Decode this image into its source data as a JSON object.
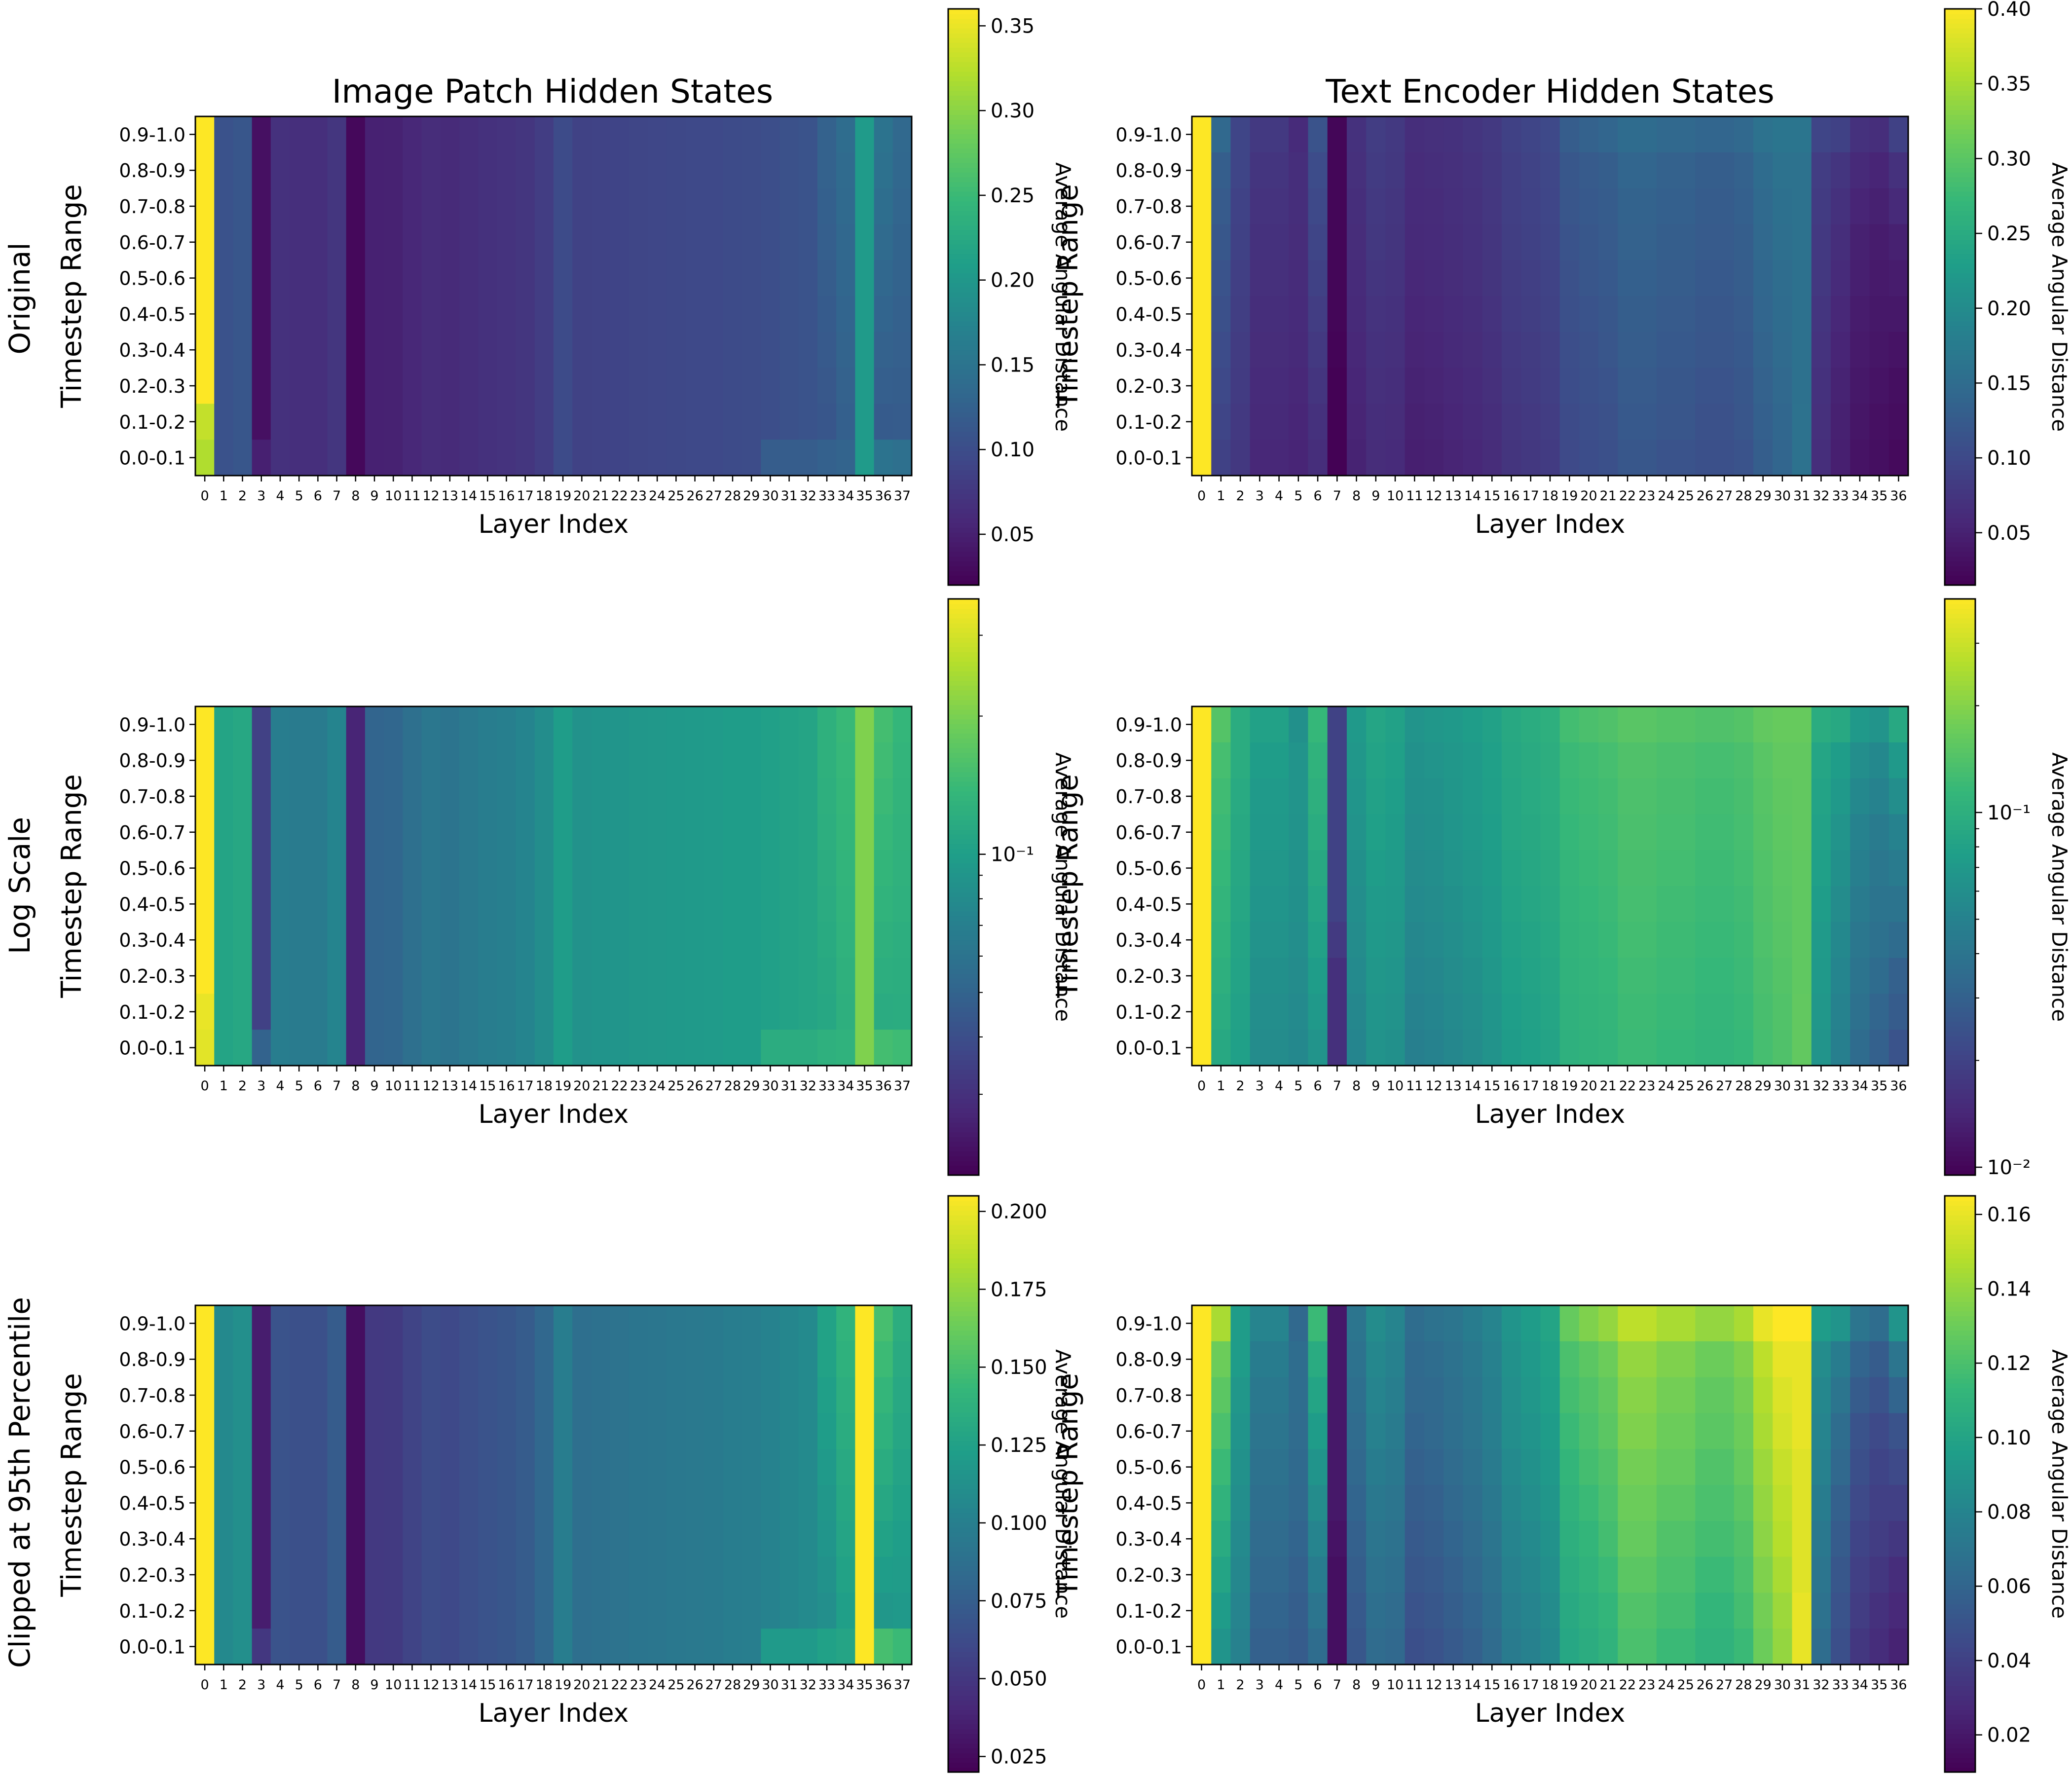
{
  "figure": {
    "column_titles": [
      "Image Patch Hidden States",
      "Text Encoder Hidden States"
    ],
    "row_labels": [
      "Original",
      "Log Scale",
      "Clipped at 95th Percentile"
    ]
  },
  "chart_data": {
    "type": "heatmap",
    "colormap": "viridis",
    "xlabel": "Layer Index",
    "ylabel": "Timestep Range",
    "colorbar_label": "Average Angular Distance",
    "y_categories": [
      "0.9-1.0",
      "0.8-0.9",
      "0.7-0.8",
      "0.6-0.7",
      "0.5-0.6",
      "0.4-0.5",
      "0.3-0.4",
      "0.2-0.3",
      "0.1-0.2",
      "0.0-0.1"
    ],
    "image_patch": {
      "title": "Image Patch Hidden States",
      "x_categories": [
        "0",
        "1",
        "2",
        "3",
        "4",
        "5",
        "6",
        "7",
        "8",
        "9",
        "10",
        "11",
        "12",
        "13",
        "14",
        "15",
        "16",
        "17",
        "18",
        "19",
        "20",
        "21",
        "22",
        "23",
        "24",
        "25",
        "26",
        "27",
        "28",
        "29",
        "30",
        "31",
        "32",
        "33",
        "34",
        "35",
        "36",
        "37"
      ],
      "values_rows_top_to_bottom": [
        [
          0.36,
          0.107,
          0.112,
          0.035,
          0.068,
          0.066,
          0.066,
          0.074,
          0.027,
          0.051,
          0.052,
          0.058,
          0.063,
          0.061,
          0.065,
          0.068,
          0.07,
          0.074,
          0.082,
          0.098,
          0.087,
          0.089,
          0.09,
          0.092,
          0.093,
          0.094,
          0.095,
          0.096,
          0.098,
          0.099,
          0.102,
          0.105,
          0.108,
          0.126,
          0.14,
          0.205,
          0.15,
          0.135
        ],
        [
          0.36,
          0.107,
          0.112,
          0.035,
          0.068,
          0.066,
          0.066,
          0.074,
          0.027,
          0.051,
          0.052,
          0.058,
          0.063,
          0.061,
          0.065,
          0.068,
          0.07,
          0.074,
          0.082,
          0.098,
          0.087,
          0.089,
          0.09,
          0.092,
          0.093,
          0.094,
          0.095,
          0.096,
          0.098,
          0.099,
          0.102,
          0.105,
          0.108,
          0.126,
          0.138,
          0.205,
          0.146,
          0.133
        ],
        [
          0.36,
          0.107,
          0.112,
          0.035,
          0.068,
          0.066,
          0.066,
          0.074,
          0.027,
          0.051,
          0.052,
          0.058,
          0.063,
          0.061,
          0.065,
          0.068,
          0.07,
          0.074,
          0.082,
          0.098,
          0.087,
          0.089,
          0.09,
          0.092,
          0.093,
          0.094,
          0.095,
          0.096,
          0.098,
          0.099,
          0.102,
          0.105,
          0.108,
          0.124,
          0.136,
          0.205,
          0.142,
          0.131
        ],
        [
          0.36,
          0.107,
          0.112,
          0.035,
          0.068,
          0.066,
          0.066,
          0.074,
          0.027,
          0.051,
          0.052,
          0.058,
          0.063,
          0.061,
          0.065,
          0.068,
          0.07,
          0.074,
          0.082,
          0.098,
          0.087,
          0.089,
          0.09,
          0.092,
          0.093,
          0.094,
          0.095,
          0.096,
          0.098,
          0.099,
          0.102,
          0.105,
          0.108,
          0.122,
          0.134,
          0.205,
          0.138,
          0.129
        ],
        [
          0.36,
          0.107,
          0.112,
          0.035,
          0.068,
          0.066,
          0.066,
          0.074,
          0.027,
          0.051,
          0.052,
          0.058,
          0.063,
          0.061,
          0.065,
          0.068,
          0.07,
          0.074,
          0.082,
          0.098,
          0.087,
          0.089,
          0.09,
          0.092,
          0.093,
          0.094,
          0.095,
          0.096,
          0.098,
          0.099,
          0.102,
          0.105,
          0.108,
          0.12,
          0.132,
          0.205,
          0.134,
          0.127
        ],
        [
          0.36,
          0.107,
          0.112,
          0.035,
          0.068,
          0.066,
          0.066,
          0.074,
          0.027,
          0.051,
          0.052,
          0.058,
          0.063,
          0.061,
          0.065,
          0.068,
          0.07,
          0.074,
          0.082,
          0.098,
          0.087,
          0.089,
          0.09,
          0.092,
          0.093,
          0.094,
          0.095,
          0.096,
          0.098,
          0.099,
          0.102,
          0.105,
          0.108,
          0.118,
          0.13,
          0.205,
          0.13,
          0.125
        ],
        [
          0.36,
          0.107,
          0.112,
          0.035,
          0.068,
          0.066,
          0.066,
          0.074,
          0.027,
          0.051,
          0.052,
          0.058,
          0.063,
          0.061,
          0.065,
          0.068,
          0.07,
          0.074,
          0.082,
          0.098,
          0.087,
          0.089,
          0.09,
          0.092,
          0.093,
          0.094,
          0.095,
          0.096,
          0.098,
          0.099,
          0.102,
          0.105,
          0.108,
          0.116,
          0.128,
          0.205,
          0.126,
          0.123
        ],
        [
          0.36,
          0.107,
          0.112,
          0.035,
          0.068,
          0.066,
          0.066,
          0.074,
          0.027,
          0.051,
          0.052,
          0.058,
          0.063,
          0.061,
          0.065,
          0.068,
          0.07,
          0.074,
          0.082,
          0.098,
          0.087,
          0.089,
          0.09,
          0.092,
          0.093,
          0.094,
          0.095,
          0.096,
          0.098,
          0.099,
          0.102,
          0.105,
          0.108,
          0.114,
          0.126,
          0.205,
          0.122,
          0.121
        ],
        [
          0.33,
          0.107,
          0.112,
          0.035,
          0.068,
          0.066,
          0.066,
          0.074,
          0.027,
          0.051,
          0.052,
          0.058,
          0.063,
          0.061,
          0.065,
          0.068,
          0.07,
          0.074,
          0.082,
          0.098,
          0.087,
          0.089,
          0.09,
          0.092,
          0.093,
          0.094,
          0.095,
          0.096,
          0.098,
          0.099,
          0.102,
          0.105,
          0.108,
          0.112,
          0.124,
          0.205,
          0.118,
          0.119
        ],
        [
          0.32,
          0.107,
          0.112,
          0.05,
          0.068,
          0.066,
          0.066,
          0.074,
          0.027,
          0.051,
          0.052,
          0.058,
          0.063,
          0.061,
          0.065,
          0.068,
          0.07,
          0.074,
          0.082,
          0.098,
          0.087,
          0.089,
          0.09,
          0.092,
          0.093,
          0.094,
          0.095,
          0.096,
          0.098,
          0.099,
          0.12,
          0.12,
          0.12,
          0.125,
          0.128,
          0.205,
          0.15,
          0.145
        ]
      ],
      "colorbars": [
        {
          "scale": "linear",
          "vmin": 0.02,
          "vmax": 0.36,
          "ticks": [
            0.05,
            0.1,
            0.15,
            0.2,
            0.25,
            0.3,
            0.35
          ],
          "tick_labels": [
            "0.05",
            "0.10",
            "0.15",
            "0.20",
            "0.25",
            "0.30",
            "0.35"
          ]
        },
        {
          "scale": "log",
          "vmin": 0.02,
          "vmax": 0.36,
          "ticks": [
            0.1
          ],
          "tick_labels": [
            "10⁻¹"
          ]
        },
        {
          "scale": "linear",
          "vmin": 0.02,
          "vmax": 0.205,
          "ticks": [
            0.025,
            0.05,
            0.075,
            0.1,
            0.125,
            0.15,
            0.175,
            0.2
          ],
          "tick_labels": [
            "0.025",
            "0.050",
            "0.075",
            "0.100",
            "0.125",
            "0.150",
            "0.175",
            "0.200"
          ]
        }
      ]
    },
    "text_encoder": {
      "title": "Text Encoder Hidden States",
      "x_categories": [
        "0",
        "1",
        "2",
        "3",
        "4",
        "5",
        "6",
        "7",
        "8",
        "9",
        "10",
        "11",
        "12",
        "13",
        "14",
        "15",
        "16",
        "17",
        "18",
        "19",
        "20",
        "21",
        "22",
        "23",
        "24",
        "25",
        "26",
        "27",
        "28",
        "29",
        "30",
        "31",
        "32",
        "33",
        "34",
        "35",
        "36"
      ],
      "values_rows_top_to_bottom": [
        [
          0.4,
          0.145,
          0.095,
          0.08,
          0.08,
          0.062,
          0.115,
          0.02,
          0.07,
          0.085,
          0.08,
          0.065,
          0.068,
          0.07,
          0.075,
          0.08,
          0.09,
          0.095,
          0.1,
          0.128,
          0.135,
          0.14,
          0.15,
          0.15,
          0.145,
          0.145,
          0.14,
          0.14,
          0.145,
          0.16,
          0.165,
          0.165,
          0.095,
          0.09,
          0.07,
          0.065,
          0.09
        ],
        [
          0.4,
          0.13,
          0.095,
          0.075,
          0.075,
          0.065,
          0.105,
          0.02,
          0.068,
          0.082,
          0.078,
          0.063,
          0.065,
          0.068,
          0.072,
          0.078,
          0.088,
          0.093,
          0.098,
          0.12,
          0.125,
          0.13,
          0.14,
          0.14,
          0.135,
          0.135,
          0.13,
          0.13,
          0.135,
          0.15,
          0.16,
          0.16,
          0.085,
          0.075,
          0.06,
          0.055,
          0.07
        ],
        [
          0.4,
          0.125,
          0.092,
          0.072,
          0.072,
          0.065,
          0.1,
          0.02,
          0.066,
          0.08,
          0.076,
          0.062,
          0.063,
          0.067,
          0.071,
          0.077,
          0.087,
          0.092,
          0.097,
          0.118,
          0.122,
          0.127,
          0.137,
          0.137,
          0.132,
          0.132,
          0.127,
          0.127,
          0.132,
          0.147,
          0.157,
          0.16,
          0.082,
          0.07,
          0.055,
          0.05,
          0.06
        ],
        [
          0.4,
          0.12,
          0.09,
          0.07,
          0.07,
          0.064,
          0.095,
          0.02,
          0.064,
          0.078,
          0.074,
          0.06,
          0.062,
          0.066,
          0.07,
          0.076,
          0.086,
          0.09,
          0.095,
          0.115,
          0.12,
          0.125,
          0.135,
          0.135,
          0.13,
          0.13,
          0.125,
          0.125,
          0.13,
          0.145,
          0.155,
          0.16,
          0.08,
          0.065,
          0.05,
          0.045,
          0.05
        ],
        [
          0.4,
          0.115,
          0.088,
          0.068,
          0.068,
          0.063,
          0.09,
          0.02,
          0.062,
          0.075,
          0.072,
          0.058,
          0.06,
          0.064,
          0.068,
          0.074,
          0.084,
          0.088,
          0.093,
          0.112,
          0.118,
          0.122,
          0.132,
          0.132,
          0.128,
          0.128,
          0.122,
          0.122,
          0.128,
          0.142,
          0.152,
          0.158,
          0.078,
          0.062,
          0.048,
          0.042,
          0.045
        ],
        [
          0.4,
          0.11,
          0.086,
          0.066,
          0.066,
          0.062,
          0.085,
          0.02,
          0.06,
          0.072,
          0.07,
          0.056,
          0.058,
          0.062,
          0.066,
          0.072,
          0.082,
          0.086,
          0.091,
          0.11,
          0.115,
          0.12,
          0.13,
          0.13,
          0.125,
          0.125,
          0.12,
          0.12,
          0.125,
          0.14,
          0.15,
          0.158,
          0.075,
          0.058,
          0.045,
          0.04,
          0.04
        ],
        [
          0.4,
          0.105,
          0.084,
          0.064,
          0.064,
          0.06,
          0.08,
          0.018,
          0.058,
          0.07,
          0.068,
          0.054,
          0.056,
          0.06,
          0.064,
          0.07,
          0.08,
          0.084,
          0.089,
          0.108,
          0.112,
          0.118,
          0.128,
          0.128,
          0.122,
          0.122,
          0.118,
          0.118,
          0.122,
          0.138,
          0.148,
          0.158,
          0.072,
          0.055,
          0.042,
          0.038,
          0.035
        ],
        [
          0.4,
          0.1,
          0.082,
          0.062,
          0.062,
          0.058,
          0.075,
          0.016,
          0.056,
          0.068,
          0.066,
          0.052,
          0.054,
          0.058,
          0.062,
          0.068,
          0.078,
          0.082,
          0.087,
          0.106,
          0.11,
          0.115,
          0.125,
          0.125,
          0.12,
          0.12,
          0.115,
          0.115,
          0.12,
          0.135,
          0.145,
          0.158,
          0.07,
          0.052,
          0.04,
          0.035,
          0.03
        ],
        [
          0.4,
          0.095,
          0.08,
          0.06,
          0.06,
          0.056,
          0.07,
          0.016,
          0.054,
          0.066,
          0.064,
          0.05,
          0.052,
          0.056,
          0.06,
          0.066,
          0.076,
          0.08,
          0.085,
          0.104,
          0.108,
          0.112,
          0.122,
          0.122,
          0.118,
          0.118,
          0.112,
          0.112,
          0.118,
          0.132,
          0.142,
          0.16,
          0.068,
          0.05,
          0.038,
          0.032,
          0.028
        ],
        [
          0.4,
          0.09,
          0.078,
          0.058,
          0.058,
          0.055,
          0.065,
          0.016,
          0.052,
          0.064,
          0.062,
          0.048,
          0.05,
          0.054,
          0.058,
          0.064,
          0.074,
          0.078,
          0.083,
          0.102,
          0.106,
          0.11,
          0.12,
          0.12,
          0.115,
          0.115,
          0.11,
          0.11,
          0.115,
          0.13,
          0.14,
          0.16,
          0.065,
          0.048,
          0.035,
          0.03,
          0.025
        ]
      ],
      "colorbars": [
        {
          "scale": "linear",
          "vmin": 0.015,
          "vmax": 0.4,
          "ticks": [
            0.05,
            0.1,
            0.15,
            0.2,
            0.25,
            0.3,
            0.35,
            0.4
          ],
          "tick_labels": [
            "0.05",
            "0.10",
            "0.15",
            "0.20",
            "0.25",
            "0.30",
            "0.35",
            "0.40"
          ]
        },
        {
          "scale": "log",
          "vmin": 0.0095,
          "vmax": 0.4,
          "ticks": [
            0.01,
            0.1
          ],
          "tick_labels": [
            "10⁻²",
            "10⁻¹"
          ]
        },
        {
          "scale": "linear",
          "vmin": 0.01,
          "vmax": 0.165,
          "ticks": [
            0.02,
            0.04,
            0.06,
            0.08,
            0.1,
            0.12,
            0.14,
            0.16
          ],
          "tick_labels": [
            "0.02",
            "0.04",
            "0.06",
            "0.08",
            "0.10",
            "0.12",
            "0.14",
            "0.16"
          ]
        }
      ]
    }
  }
}
